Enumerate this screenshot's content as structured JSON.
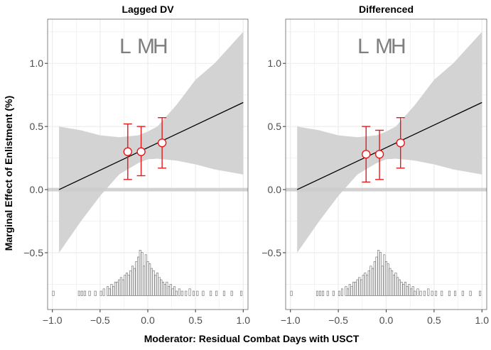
{
  "figure": {
    "ylabel": "Marginal Effect of Enlistment (%)",
    "xlabel": "Moderator: Residual Combat Days with USCT"
  },
  "chart_data": [
    {
      "type": "line",
      "title": "Lagged DV",
      "xlim": [
        -1.05,
        1.05
      ],
      "ylim": [
        -0.95,
        1.35
      ],
      "xticks": [
        -1.0,
        -0.5,
        0.0,
        0.5,
        1.0
      ],
      "xtick_labels": [
        "−1.0",
        "−0.5",
        "0.0",
        "0.5",
        "1.0"
      ],
      "yticks": [
        -0.5,
        0.0,
        0.5,
        1.0
      ],
      "ytick_labels": [
        "−0.5",
        "0.0",
        "0.5",
        "1.0"
      ],
      "grid": true,
      "line": {
        "x": [
          -0.93,
          1.0
        ],
        "y": [
          0.0,
          0.69
        ]
      },
      "ci_band": {
        "x": [
          -0.93,
          -0.7,
          -0.5,
          -0.3,
          -0.1,
          0.0,
          0.1,
          0.3,
          0.5,
          0.7,
          1.0
        ],
        "lower": [
          -0.5,
          -0.25,
          -0.05,
          0.12,
          0.21,
          0.24,
          0.245,
          0.23,
          0.2,
          0.16,
          0.12
        ],
        "upper": [
          0.5,
          0.47,
          0.43,
          0.415,
          0.43,
          0.46,
          0.5,
          0.67,
          0.87,
          1.0,
          1.25
        ]
      },
      "zero_line": 0.0,
      "bin_labels": [
        "L",
        "M",
        "H"
      ],
      "bin_estimates": [
        {
          "label": "L",
          "x": -0.21,
          "y": 0.3,
          "lower": 0.08,
          "upper": 0.52
        },
        {
          "label": "M",
          "x": -0.07,
          "y": 0.3,
          "lower": 0.11,
          "upper": 0.5
        },
        {
          "label": "H",
          "x": 0.15,
          "y": 0.37,
          "lower": 0.17,
          "upper": 0.57
        }
      ],
      "histogram": {
        "baseline": -0.84,
        "max_height": 0.36,
        "bin_width": 0.018,
        "bins": [
          [
            -0.99,
            0.1
          ],
          [
            -0.72,
            0.1
          ],
          [
            -0.69,
            0.1
          ],
          [
            -0.66,
            0.1
          ],
          [
            -0.61,
            0.1
          ],
          [
            -0.55,
            0.1
          ],
          [
            -0.49,
            0.1
          ],
          [
            -0.46,
            0.15
          ],
          [
            -0.42,
            0.2
          ],
          [
            -0.4,
            0.15
          ],
          [
            -0.38,
            0.25
          ],
          [
            -0.36,
            0.2
          ],
          [
            -0.34,
            0.3
          ],
          [
            -0.32,
            0.3
          ],
          [
            -0.3,
            0.35
          ],
          [
            -0.28,
            0.4
          ],
          [
            -0.26,
            0.35
          ],
          [
            -0.24,
            0.45
          ],
          [
            -0.22,
            0.5
          ],
          [
            -0.2,
            0.45
          ],
          [
            -0.18,
            0.55
          ],
          [
            -0.16,
            0.65
          ],
          [
            -0.14,
            0.6
          ],
          [
            -0.12,
            0.75
          ],
          [
            -0.1,
            0.85
          ],
          [
            -0.08,
            1.0
          ],
          [
            -0.06,
            0.95
          ],
          [
            -0.04,
            0.65
          ],
          [
            -0.02,
            0.9
          ],
          [
            0.0,
            0.75
          ],
          [
            0.02,
            0.7
          ],
          [
            0.04,
            0.6
          ],
          [
            0.06,
            0.55
          ],
          [
            0.08,
            0.45
          ],
          [
            0.1,
            0.5
          ],
          [
            0.12,
            0.4
          ],
          [
            0.14,
            0.35
          ],
          [
            0.16,
            0.3
          ],
          [
            0.18,
            0.25
          ],
          [
            0.2,
            0.3
          ],
          [
            0.22,
            0.2
          ],
          [
            0.24,
            0.25
          ],
          [
            0.26,
            0.15
          ],
          [
            0.28,
            0.2
          ],
          [
            0.3,
            0.1
          ],
          [
            0.33,
            0.15
          ],
          [
            0.36,
            0.1
          ],
          [
            0.4,
            0.1
          ],
          [
            0.44,
            0.15
          ],
          [
            0.48,
            0.1
          ],
          [
            0.52,
            0.1
          ],
          [
            0.58,
            0.1
          ],
          [
            0.66,
            0.1
          ],
          [
            0.72,
            0.1
          ],
          [
            0.8,
            0.1
          ],
          [
            0.88,
            0.1
          ],
          [
            0.98,
            0.1
          ]
        ]
      }
    },
    {
      "type": "line",
      "title": "Differenced",
      "xlim": [
        -1.05,
        1.05
      ],
      "ylim": [
        -0.95,
        1.35
      ],
      "xticks": [
        -1.0,
        -0.5,
        0.0,
        0.5,
        1.0
      ],
      "xtick_labels": [
        "−1.0",
        "−0.5",
        "0.0",
        "0.5",
        "1.0"
      ],
      "yticks": [
        -0.5,
        0.0,
        0.5,
        1.0
      ],
      "ytick_labels": [
        "−0.5",
        "0.0",
        "0.5",
        "1.0"
      ],
      "grid": true,
      "line": {
        "x": [
          -0.93,
          1.0
        ],
        "y": [
          0.0,
          0.69
        ]
      },
      "ci_band": {
        "x": [
          -0.93,
          -0.7,
          -0.5,
          -0.3,
          -0.1,
          0.0,
          0.1,
          0.3,
          0.5,
          0.7,
          1.0
        ],
        "lower": [
          -0.5,
          -0.25,
          -0.05,
          0.12,
          0.21,
          0.24,
          0.245,
          0.23,
          0.2,
          0.16,
          0.12
        ],
        "upper": [
          0.5,
          0.47,
          0.43,
          0.415,
          0.43,
          0.46,
          0.5,
          0.67,
          0.87,
          1.0,
          1.25
        ]
      },
      "zero_line": 0.0,
      "bin_labels": [
        "L",
        "M",
        "H"
      ],
      "bin_estimates": [
        {
          "label": "L",
          "x": -0.21,
          "y": 0.28,
          "lower": 0.06,
          "upper": 0.5
        },
        {
          "label": "M",
          "x": -0.07,
          "y": 0.28,
          "lower": 0.08,
          "upper": 0.47
        },
        {
          "label": "H",
          "x": 0.15,
          "y": 0.37,
          "lower": 0.17,
          "upper": 0.57
        }
      ],
      "histogram": {
        "baseline": -0.84,
        "max_height": 0.36,
        "bin_width": 0.018,
        "bins": [
          [
            -0.99,
            0.1
          ],
          [
            -0.72,
            0.1
          ],
          [
            -0.69,
            0.1
          ],
          [
            -0.66,
            0.1
          ],
          [
            -0.61,
            0.1
          ],
          [
            -0.55,
            0.1
          ],
          [
            -0.49,
            0.1
          ],
          [
            -0.46,
            0.15
          ],
          [
            -0.42,
            0.2
          ],
          [
            -0.4,
            0.15
          ],
          [
            -0.38,
            0.25
          ],
          [
            -0.36,
            0.2
          ],
          [
            -0.34,
            0.3
          ],
          [
            -0.32,
            0.3
          ],
          [
            -0.3,
            0.35
          ],
          [
            -0.28,
            0.4
          ],
          [
            -0.26,
            0.35
          ],
          [
            -0.24,
            0.45
          ],
          [
            -0.22,
            0.5
          ],
          [
            -0.2,
            0.45
          ],
          [
            -0.18,
            0.55
          ],
          [
            -0.16,
            0.65
          ],
          [
            -0.14,
            0.6
          ],
          [
            -0.12,
            0.75
          ],
          [
            -0.1,
            0.85
          ],
          [
            -0.08,
            1.0
          ],
          [
            -0.06,
            0.95
          ],
          [
            -0.04,
            0.65
          ],
          [
            -0.02,
            0.9
          ],
          [
            0.0,
            0.75
          ],
          [
            0.02,
            0.7
          ],
          [
            0.04,
            0.6
          ],
          [
            0.06,
            0.55
          ],
          [
            0.08,
            0.45
          ],
          [
            0.1,
            0.5
          ],
          [
            0.12,
            0.4
          ],
          [
            0.14,
            0.35
          ],
          [
            0.16,
            0.3
          ],
          [
            0.18,
            0.25
          ],
          [
            0.2,
            0.3
          ],
          [
            0.22,
            0.2
          ],
          [
            0.24,
            0.25
          ],
          [
            0.26,
            0.15
          ],
          [
            0.28,
            0.2
          ],
          [
            0.3,
            0.1
          ],
          [
            0.33,
            0.15
          ],
          [
            0.36,
            0.1
          ],
          [
            0.4,
            0.1
          ],
          [
            0.44,
            0.15
          ],
          [
            0.48,
            0.1
          ],
          [
            0.52,
            0.1
          ],
          [
            0.58,
            0.1
          ],
          [
            0.66,
            0.1
          ],
          [
            0.72,
            0.1
          ],
          [
            0.8,
            0.1
          ],
          [
            0.88,
            0.1
          ],
          [
            0.98,
            0.1
          ]
        ]
      }
    }
  ],
  "colors": {
    "band": "#d3d3d3",
    "grid": "#ebebeb",
    "panel_border": "#333333",
    "line": "#000000",
    "errorbar": "#e31a1c",
    "point_fill": "#ffffff",
    "bin_label": "#7f7f7f",
    "zero_line": "#cccccc",
    "hist_fill": "#ffffff",
    "hist_stroke": "#666666",
    "tick_text": "#4d4d4d"
  }
}
